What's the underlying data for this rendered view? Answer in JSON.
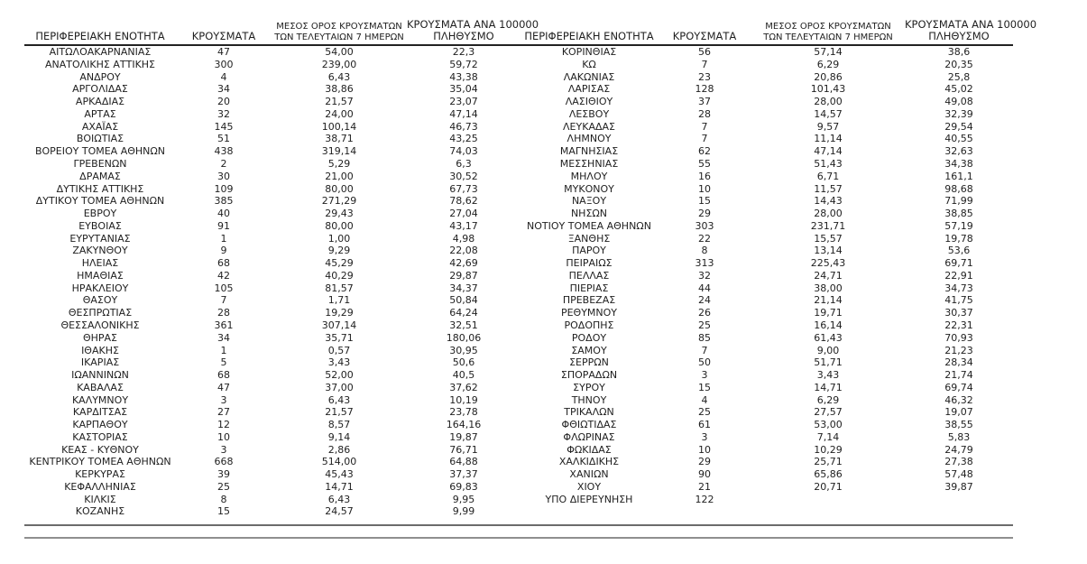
{
  "page": {
    "background": "#ffffff",
    "text_color": "#1f1f1f",
    "header_rule_color": "#222222",
    "bottom_rule_colors": [
      "#6b6b6b",
      "#8f8f8f"
    ]
  },
  "table": {
    "col_headers": {
      "region": "ΠΕΡΙΦΕΡΕΙΑΚΗ ΕΝΟΤΗΤΑ",
      "cases": "ΚΡΟΥΣΜΑΤΑ",
      "avg7_l1": "ΜΕΣΟΣ ΟΡΟΣ ΚΡΟΥΣΜΑΤΩΝ",
      "avg7_l2": "ΤΩΝ ΤΕΛΕΥΤΑΙΩΝ 7 ΗΜΕΡΩΝ",
      "per100k_l1": "ΚΡΟΥΣΜΑΤΑ ΑΝΑ 100000",
      "per100k_l2": "ΠΛΗΘΥΣΜΟ"
    },
    "left_rows": [
      [
        "ΑΙΤΩΛΟΑΚΑΡΝΑΝΙΑΣ",
        "47",
        "54,00",
        "22,3"
      ],
      [
        "ΑΝΑΤΟΛΙΚΗΣ ΑΤΤΙΚΗΣ",
        "300",
        "239,00",
        "59,72"
      ],
      [
        "ΑΝΔΡΟΥ",
        "4",
        "6,43",
        "43,38"
      ],
      [
        "ΑΡΓΟΛΙΔΑΣ",
        "34",
        "38,86",
        "35,04"
      ],
      [
        "ΑΡΚΑΔΙΑΣ",
        "20",
        "21,57",
        "23,07"
      ],
      [
        "ΑΡΤΑΣ",
        "32",
        "24,00",
        "47,14"
      ],
      [
        "ΑΧΑΪΑΣ",
        "145",
        "100,14",
        "46,73"
      ],
      [
        "ΒΟΙΩΤΙΑΣ",
        "51",
        "38,71",
        "43,25"
      ],
      [
        "ΒΟΡΕΙΟΥ ΤΟΜΕΑ ΑΘΗΝΩΝ",
        "438",
        "319,14",
        "74,03"
      ],
      [
        "ΓΡΕΒΕΝΩΝ",
        "2",
        "5,29",
        "6,3"
      ],
      [
        "ΔΡΑΜΑΣ",
        "30",
        "21,00",
        "30,52"
      ],
      [
        "ΔΥΤΙΚΗΣ ΑΤΤΙΚΗΣ",
        "109",
        "80,00",
        "67,73"
      ],
      [
        "ΔΥΤΙΚΟΥ ΤΟΜΕΑ ΑΘΗΝΩΝ",
        "385",
        "271,29",
        "78,62"
      ],
      [
        "ΕΒΡΟΥ",
        "40",
        "29,43",
        "27,04"
      ],
      [
        "ΕΥΒΟΙΑΣ",
        "91",
        "80,00",
        "43,17"
      ],
      [
        "ΕΥΡΥΤΑΝΙΑΣ",
        "1",
        "1,00",
        "4,98"
      ],
      [
        "ΖΑΚΥΝΘΟΥ",
        "9",
        "9,29",
        "22,08"
      ],
      [
        "ΗΛΕΙΑΣ",
        "68",
        "45,29",
        "42,69"
      ],
      [
        "ΗΜΑΘΙΑΣ",
        "42",
        "40,29",
        "29,87"
      ],
      [
        "ΗΡΑΚΛΕΙΟΥ",
        "105",
        "81,57",
        "34,37"
      ],
      [
        "ΘΑΣΟΥ",
        "7",
        "1,71",
        "50,84"
      ],
      [
        "ΘΕΣΠΡΩΤΙΑΣ",
        "28",
        "19,29",
        "64,24"
      ],
      [
        "ΘΕΣΣΑΛΟΝΙΚΗΣ",
        "361",
        "307,14",
        "32,51"
      ],
      [
        "ΘΗΡΑΣ",
        "34",
        "35,71",
        "180,06"
      ],
      [
        "ΙΘΑΚΗΣ",
        "1",
        "0,57",
        "30,95"
      ],
      [
        "ΙΚΑΡΙΑΣ",
        "5",
        "3,43",
        "50,6"
      ],
      [
        "ΙΩΑΝΝΙΝΩΝ",
        "68",
        "52,00",
        "40,5"
      ],
      [
        "ΚΑΒΑΛΑΣ",
        "47",
        "37,00",
        "37,62"
      ],
      [
        "ΚΑΛΥΜΝΟΥ",
        "3",
        "6,43",
        "10,19"
      ],
      [
        "ΚΑΡΔΙΤΣΑΣ",
        "27",
        "21,57",
        "23,78"
      ],
      [
        "ΚΑΡΠΑΘΟΥ",
        "12",
        "8,57",
        "164,16"
      ],
      [
        "ΚΑΣΤΟΡΙΑΣ",
        "10",
        "9,14",
        "19,87"
      ],
      [
        "ΚΕΑΣ - ΚΥΘΝΟΥ",
        "3",
        "2,86",
        "76,71"
      ],
      [
        "ΚΕΝΤΡΙΚΟΥ ΤΟΜΕΑ ΑΘΗΝΩΝ",
        "668",
        "514,00",
        "64,88"
      ],
      [
        "ΚΕΡΚΥΡΑΣ",
        "39",
        "45,43",
        "37,37"
      ],
      [
        "ΚΕΦΑΛΛΗΝΙΑΣ",
        "25",
        "14,71",
        "69,83"
      ],
      [
        "ΚΙΛΚΙΣ",
        "8",
        "6,43",
        "9,95"
      ],
      [
        "ΚΟΖΑΝΗΣ",
        "15",
        "24,57",
        "9,99"
      ]
    ],
    "right_rows": [
      [
        "ΚΟΡΙΝΘΙΑΣ",
        "56",
        "57,14",
        "38,6"
      ],
      [
        "ΚΩ",
        "7",
        "6,29",
        "20,35"
      ],
      [
        "ΛΑΚΩΝΙΑΣ",
        "23",
        "20,86",
        "25,8"
      ],
      [
        "ΛΑΡΙΣΑΣ",
        "128",
        "101,43",
        "45,02"
      ],
      [
        "ΛΑΣΙΘΙΟΥ",
        "37",
        "28,00",
        "49,08"
      ],
      [
        "ΛΕΣΒΟΥ",
        "28",
        "14,57",
        "32,39"
      ],
      [
        "ΛΕΥΚΑΔΑΣ",
        "7",
        "9,57",
        "29,54"
      ],
      [
        "ΛΗΜΝΟΥ",
        "7",
        "11,14",
        "40,55"
      ],
      [
        "ΜΑΓΝΗΣΙΑΣ",
        "62",
        "47,14",
        "32,63"
      ],
      [
        "ΜΕΣΣΗΝΙΑΣ",
        "55",
        "51,43",
        "34,38"
      ],
      [
        "ΜΗΛΟΥ",
        "16",
        "6,71",
        "161,1"
      ],
      [
        "ΜΥΚΟΝΟΥ",
        "10",
        "11,57",
        "98,68"
      ],
      [
        "ΝΑΞΟΥ",
        "15",
        "14,43",
        "71,99"
      ],
      [
        "ΝΗΣΩΝ",
        "29",
        "28,00",
        "38,85"
      ],
      [
        "ΝΟΤΙΟΥ ΤΟΜΕΑ ΑΘΗΝΩΝ",
        "303",
        "231,71",
        "57,19"
      ],
      [
        "ΞΑΝΘΗΣ",
        "22",
        "15,57",
        "19,78"
      ],
      [
        "ΠΑΡΟΥ",
        "8",
        "13,14",
        "53,6"
      ],
      [
        "ΠΕΙΡΑΙΩΣ",
        "313",
        "225,43",
        "69,71"
      ],
      [
        "ΠΕΛΛΑΣ",
        "32",
        "24,71",
        "22,91"
      ],
      [
        "ΠΙΕΡΙΑΣ",
        "44",
        "38,00",
        "34,73"
      ],
      [
        "ΠΡΕΒΕΖΑΣ",
        "24",
        "21,14",
        "41,75"
      ],
      [
        "ΡΕΘΥΜΝΟΥ",
        "26",
        "19,71",
        "30,37"
      ],
      [
        "ΡΟΔΟΠΗΣ",
        "25",
        "16,14",
        "22,31"
      ],
      [
        "ΡΟΔΟΥ",
        "85",
        "61,43",
        "70,93"
      ],
      [
        "ΣΑΜΟΥ",
        "7",
        "9,00",
        "21,23"
      ],
      [
        "ΣΕΡΡΩΝ",
        "50",
        "51,71",
        "28,34"
      ],
      [
        "ΣΠΟΡΑΔΩΝ",
        "3",
        "3,43",
        "21,74"
      ],
      [
        "ΣΥΡΟΥ",
        "15",
        "14,71",
        "69,74"
      ],
      [
        "ΤΗΝΟΥ",
        "4",
        "6,29",
        "46,32"
      ],
      [
        "ΤΡΙΚΑΛΩΝ",
        "25",
        "27,57",
        "19,07"
      ],
      [
        "ΦΘΙΩΤΙΔΑΣ",
        "61",
        "53,00",
        "38,55"
      ],
      [
        "ΦΛΩΡΙΝΑΣ",
        "3",
        "7,14",
        "5,83"
      ],
      [
        "ΦΩΚΙΔΑΣ",
        "10",
        "10,29",
        "24,79"
      ],
      [
        "ΧΑΛΚΙΔΙΚΗΣ",
        "29",
        "25,71",
        "27,38"
      ],
      [
        "ΧΑΝΙΩΝ",
        "90",
        "65,86",
        "57,48"
      ],
      [
        "ΧΙΟΥ",
        "21",
        "20,71",
        "39,87"
      ],
      [
        "ΥΠΟ ΔΙΕΡΕΥΝΗΣΗ",
        "122",
        "",
        ""
      ]
    ]
  }
}
